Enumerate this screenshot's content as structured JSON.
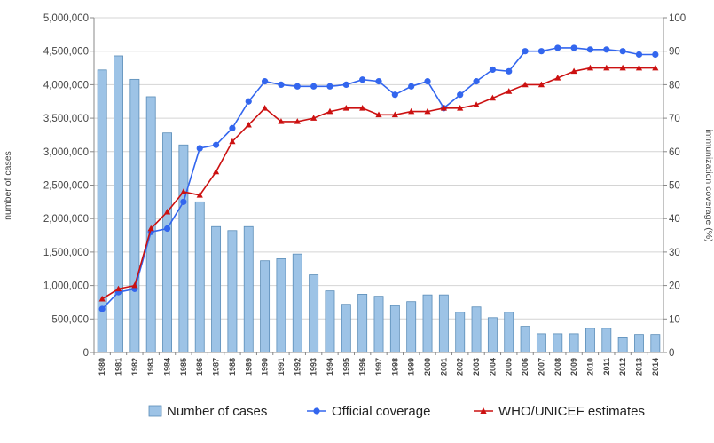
{
  "chart_data": {
    "type": "bar+line",
    "categories": [
      "1980",
      "1981",
      "1982",
      "1983",
      "1984",
      "1985",
      "1986",
      "1987",
      "1988",
      "1989",
      "1990",
      "1991",
      "1992",
      "1993",
      "1994",
      "1995",
      "1996",
      "1997",
      "1998",
      "1999",
      "2000",
      "2001",
      "2002",
      "2003",
      "2004",
      "2005",
      "2006",
      "2007",
      "2008",
      "2009",
      "2010",
      "2011",
      "2012",
      "2013",
      "2014"
    ],
    "left_axis": {
      "label": "number of cases",
      "ylim": [
        0,
        5000000
      ],
      "ticks": [
        "0",
        "500,000",
        "1,000,000",
        "1,500,000",
        "2,000,000",
        "2,500,000",
        "3,000,000",
        "3,500,000",
        "4,000,000",
        "4,500,000",
        "5,000,000"
      ]
    },
    "right_axis": {
      "label": "immunization coverage (%)",
      "ylim": [
        0,
        100
      ],
      "ticks": [
        "0",
        "10",
        "20",
        "30",
        "40",
        "50",
        "60",
        "70",
        "80",
        "90",
        "100"
      ]
    },
    "grid": true,
    "legend_position": "bottom",
    "series": [
      {
        "name": "Number of cases",
        "type": "bar",
        "axis": "left",
        "color": "#9dc3e6",
        "values": [
          4220000,
          4430000,
          4080000,
          3820000,
          3280000,
          3100000,
          2250000,
          1880000,
          1820000,
          1880000,
          1370000,
          1400000,
          1470000,
          1160000,
          920000,
          720000,
          870000,
          840000,
          700000,
          760000,
          860000,
          860000,
          600000,
          680000,
          520000,
          600000,
          390000,
          280000,
          280000,
          280000,
          360000,
          360000,
          220000,
          270000,
          270000
        ]
      },
      {
        "name": "Official coverage",
        "type": "line",
        "axis": "right",
        "color": "#3366ee",
        "marker": "circle",
        "values": [
          13,
          18,
          19,
          36,
          37,
          45,
          61,
          62,
          67,
          75,
          81,
          80,
          79.5,
          79.5,
          79.5,
          80,
          81.5,
          81,
          77,
          79.5,
          81,
          73,
          77,
          81,
          84.5,
          84,
          90,
          90,
          91,
          91,
          90.5,
          90.5,
          90,
          89,
          89
        ]
      },
      {
        "name": "WHO/UNICEF estimates",
        "type": "line",
        "axis": "right",
        "color": "#cc1111",
        "marker": "triangle",
        "values": [
          16,
          19,
          20,
          37,
          42,
          48,
          47,
          54,
          63,
          68,
          73,
          69,
          69,
          70,
          72,
          73,
          73,
          71,
          71,
          72,
          72,
          73,
          73,
          74,
          76,
          78,
          80,
          80,
          82,
          84,
          85,
          85,
          85,
          85,
          85
        ]
      }
    ]
  }
}
